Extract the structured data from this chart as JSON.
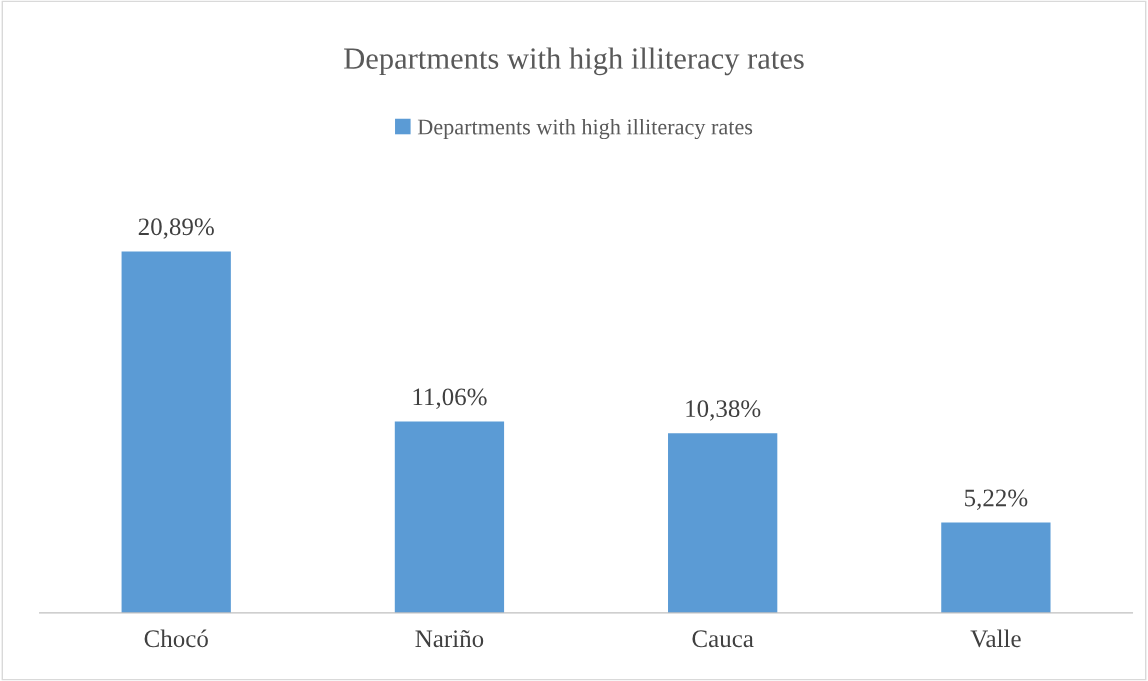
{
  "chart_data": {
    "type": "bar",
    "title": "Departments with high illiteracy rates",
    "categories": [
      "Chocó",
      "Nariño",
      "Cauca",
      "Valle"
    ],
    "series": [
      {
        "name": "Departments with high illiteracy rates",
        "color": "#5b9bd5",
        "values": [
          20.89,
          11.06,
          10.38,
          5.22
        ],
        "value_labels": [
          "20,89%",
          "11,06%",
          "10,38%",
          "5,22%"
        ]
      }
    ],
    "tick_labels": "x",
    "grid": false,
    "legend": "top"
  }
}
